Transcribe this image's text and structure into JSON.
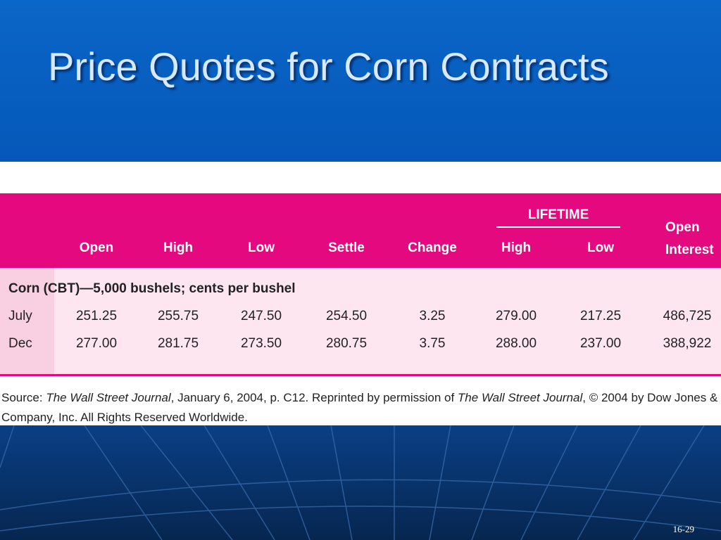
{
  "title": "Price Quotes for Corn Contracts",
  "table": {
    "group_header": "LIFETIME",
    "headers": [
      "Open",
      "High",
      "Low",
      "Settle",
      "Change",
      "High",
      "Low",
      "Open Interest"
    ],
    "section": "Corn (CBT)—5,000 bushels; cents per bushel",
    "rows": [
      [
        "July",
        "251.25",
        "255.75",
        "247.50",
        "254.50",
        "3.25",
        "279.00",
        "217.25",
        "486,725"
      ],
      [
        "Dec",
        "277.00",
        "281.75",
        "273.50",
        "280.75",
        "3.75",
        "288.00",
        "237.00",
        "388,922"
      ]
    ]
  },
  "source": [
    {
      "text": "Source: ",
      "italic": false
    },
    {
      "text": "The Wall Street Journal",
      "italic": true
    },
    {
      "text": ", January 6, 2004, p. C12. Reprinted by permission of ",
      "italic": false
    },
    {
      "text": "The Wall Street Journal",
      "italic": true
    },
    {
      "text": ", © 2004 by Dow Jones & Company, Inc. All Rights Reserved Worldwide.",
      "italic": false
    }
  ],
  "slide_number": "16-29"
}
